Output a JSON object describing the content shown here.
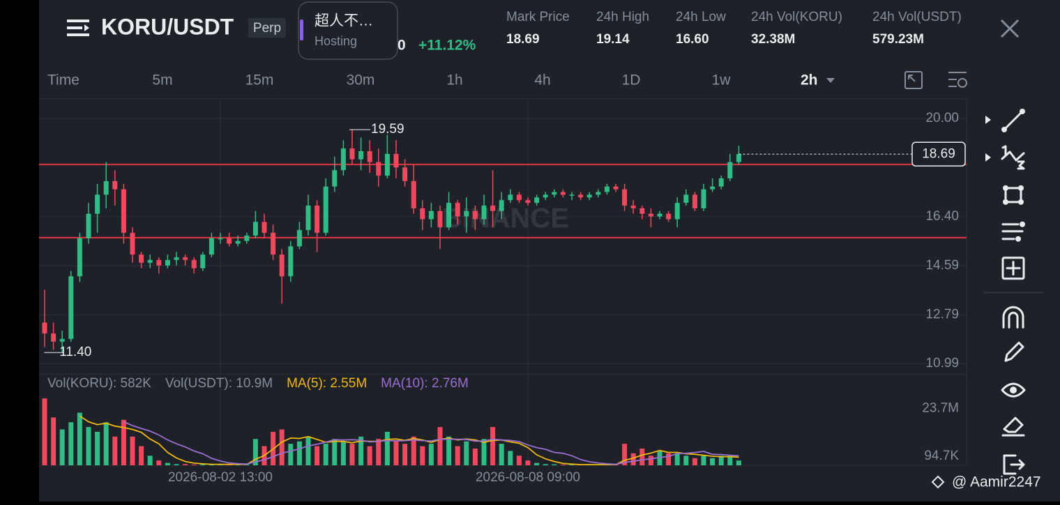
{
  "header": {
    "title": "KORU/USDT",
    "badge": "Perp",
    "hosting": {
      "name": "超人不…",
      "label": "Hosting"
    },
    "price_fragment": "0",
    "change": "+11.12%",
    "stats": [
      {
        "label": "Mark Price",
        "value": "18.69"
      },
      {
        "label": "24h High",
        "value": "19.14"
      },
      {
        "label": "24h Low",
        "value": "16.60"
      },
      {
        "label": "24h Vol(KORU)",
        "value": "32.38M"
      },
      {
        "label": "24h Vol(USDT)",
        "value": "579.23M"
      }
    ]
  },
  "intervals": [
    "Time",
    "5m",
    "15m",
    "30m",
    "1h",
    "4h",
    "1D",
    "1w"
  ],
  "current_interval": "2h",
  "watermark": "BINANCE",
  "credit": "@ Aamir2247",
  "chart_data": {
    "type": "candlestick",
    "ylim": [
      10.66,
      20.72
    ],
    "yticks": [
      {
        "value": 20,
        "label": "20.00"
      },
      {
        "value": 16.4,
        "label": "16.40"
      },
      14.59,
      12.79,
      10.99
    ],
    "xlim": [
      -0.5,
      105
    ],
    "xticks": [
      {
        "value": 20,
        "label": "2026-08-02 13:00"
      },
      {
        "value": 55,
        "label": "2026-08-08 09:00"
      }
    ],
    "up_color": "#2ebd85",
    "down_color": "#f6465d",
    "grid": true,
    "open": [
      12.5,
      12.1,
      11.8,
      11.9,
      14.2,
      15.6,
      16.5,
      17.2,
      17.7,
      17.4,
      15.8,
      15.0,
      14.7,
      14.8,
      14.6,
      14.8,
      14.9,
      14.8,
      14.5,
      15.0,
      15.6,
      15.6,
      15.4,
      15.5,
      15.7,
      16.2,
      15.8,
      15.0,
      14.2,
      15.3,
      15.9,
      16.8,
      15.8,
      17.5,
      18.1,
      18.9,
      18.5,
      18.8,
      18.4,
      17.9,
      18.7,
      18.2,
      17.7,
      16.7,
      16.3,
      16.6,
      16.0,
      16.9,
      16.4,
      16.6,
      16.3,
      16.8,
      16.6,
      17.0,
      17.2,
      17.0,
      16.9,
      17.1,
      17.2,
      17.3,
      17.2,
      17.2,
      17.1,
      17.2,
      17.3,
      17.5,
      17.4,
      16.8,
      16.7,
      16.5,
      16.4,
      16.5,
      16.3,
      16.9,
      17.2,
      16.7,
      17.4,
      17.5,
      17.8,
      18.4
    ],
    "high": [
      13.7,
      12.5,
      12.2,
      14.4,
      15.8,
      16.9,
      17.6,
      18.4,
      18.1,
      17.6,
      16.0,
      15.1,
      15.0,
      14.9,
      15.0,
      15.1,
      15.0,
      14.9,
      15.1,
      15.8,
      15.8,
      15.8,
      15.7,
      15.8,
      16.6,
      16.5,
      16.1,
      15.2,
      15.5,
      16.2,
      17.2,
      17.0,
      17.8,
      18.6,
      19.2,
      19.59,
      19.3,
      19.2,
      18.9,
      19.4,
      19.2,
      18.5,
      18.3,
      17.0,
      16.9,
      16.8,
      17.3,
      17.0,
      17.1,
      16.8,
      17.2,
      18.1,
      17.3,
      17.4,
      17.3,
      17.1,
      17.2,
      17.3,
      17.4,
      17.4,
      17.3,
      17.3,
      17.3,
      17.4,
      17.6,
      17.6,
      17.6,
      17.0,
      16.8,
      16.7,
      16.6,
      16.6,
      17.1,
      17.4,
      17.3,
      17.6,
      17.8,
      17.9,
      18.7,
      19.0
    ],
    "low": [
      11.6,
      11.5,
      11.4,
      11.8,
      14.0,
      15.4,
      15.8,
      16.7,
      16.8,
      15.4,
      14.7,
      14.5,
      14.5,
      14.3,
      14.5,
      14.6,
      14.6,
      14.3,
      14.4,
      14.9,
      15.4,
      15.3,
      15.3,
      15.4,
      15.6,
      15.6,
      14.8,
      13.2,
      14.0,
      15.2,
      15.7,
      15.1,
      15.7,
      17.3,
      17.9,
      18.3,
      18.1,
      18.0,
      17.5,
      17.8,
      17.8,
      17.5,
      16.5,
      15.9,
      16.0,
      15.2,
      15.9,
      16.1,
      15.8,
      15.9,
      16.1,
      16.0,
      16.3,
      16.9,
      16.9,
      16.8,
      16.8,
      17.0,
      17.1,
      17.1,
      17.0,
      17.0,
      17.0,
      17.1,
      17.2,
      17.3,
      16.6,
      16.5,
      16.3,
      16.0,
      16.3,
      16.2,
      16.0,
      16.8,
      16.6,
      16.6,
      17.3,
      17.4,
      17.7,
      18.3
    ],
    "close": [
      12.1,
      11.8,
      11.9,
      14.2,
      15.6,
      16.5,
      17.2,
      17.7,
      17.4,
      15.8,
      15.0,
      14.7,
      14.8,
      14.6,
      14.8,
      14.9,
      14.8,
      14.5,
      15.0,
      15.6,
      15.6,
      15.4,
      15.5,
      15.7,
      16.2,
      15.8,
      15.0,
      14.2,
      15.3,
      15.9,
      16.8,
      15.8,
      17.5,
      18.1,
      18.9,
      18.5,
      18.8,
      18.4,
      17.9,
      18.7,
      18.2,
      17.7,
      16.7,
      16.3,
      16.6,
      16.0,
      16.9,
      16.4,
      16.6,
      16.3,
      16.8,
      16.6,
      17.0,
      17.2,
      17.0,
      16.9,
      17.1,
      17.2,
      17.3,
      17.2,
      17.2,
      17.1,
      17.2,
      17.3,
      17.5,
      17.4,
      16.8,
      16.7,
      16.5,
      16.4,
      16.5,
      16.3,
      16.9,
      17.2,
      16.7,
      17.4,
      17.5,
      17.8,
      18.4,
      18.69
    ],
    "high_label": 19.59,
    "low_label": {
      "value": 11.4,
      "label": "11.40"
    },
    "last_price": 18.69,
    "levels": [
      18.31,
      15.62
    ],
    "level_color": "#e0353f",
    "volume": {
      "legend": [
        "Vol(KORU): 582K",
        "Vol(USDT): 10.9M",
        "MA(5): 2.55M",
        "MA(10): 2.76M"
      ],
      "legend_colors": [
        "#848e9c",
        "#848e9c",
        "#f0b90b",
        "#9b6fd1"
      ],
      "ylim": [
        0,
        30
      ],
      "yticks": [
        {
          "value": 23.7,
          "label": "23.7M"
        },
        {
          "value": 0.0947,
          "label": "94.7K"
        }
      ],
      "values": [
        28,
        20,
        15,
        18,
        22,
        16,
        14,
        18,
        12,
        19,
        12,
        8,
        4,
        2,
        1,
        0.5,
        0.5,
        0.3,
        0.5,
        0.4,
        0.3,
        0.3,
        0.5,
        0.5,
        11,
        8,
        14,
        15,
        9,
        10,
        12,
        8,
        9,
        11,
        10,
        9,
        12,
        8,
        11,
        14,
        10,
        9,
        12,
        8,
        9,
        16,
        12,
        8,
        10,
        7,
        11,
        16,
        9,
        6,
        4,
        2,
        1,
        0.5,
        0.4,
        0.3,
        0.3,
        0.3,
        0.3,
        0.3,
        0.3,
        0.4,
        9,
        5,
        7,
        4,
        6,
        5,
        5,
        4,
        3,
        4,
        3,
        4,
        4,
        2
      ],
      "ma5": [
        null,
        null,
        null,
        null,
        20.6,
        18.2,
        17,
        17.6,
        16.4,
        15.8,
        15,
        13.8,
        11,
        9,
        5.4,
        3.1,
        1.6,
        0.9,
        0.6,
        0.4,
        0.4,
        0.4,
        0.4,
        0.4,
        2.5,
        4.1,
        6.8,
        9.7,
        11.4,
        11.2,
        12,
        10.8,
        9.6,
        10,
        10,
        9.4,
        10.2,
        10,
        10,
        10.8,
        11,
        10.4,
        11.2,
        10.6,
        9.6,
        10.8,
        11.4,
        10.6,
        11,
        10.6,
        9.6,
        10.4,
        10.6,
        9.8,
        9.2,
        7.4,
        4.4,
        2.7,
        1.6,
        0.8,
        0.5,
        0.3,
        0.3,
        0.3,
        0.3,
        0.3,
        2.1,
        3,
        4.3,
        5.1,
        6.2,
        5.4,
        5.4,
        4.8,
        4.6,
        4.2,
        3.8,
        3.6,
        3.6,
        3.4
      ],
      "ma10": [
        null,
        null,
        null,
        null,
        null,
        null,
        null,
        null,
        null,
        18.2,
        16.6,
        15.4,
        14.3,
        12.7,
        10.6,
        9,
        7.7,
        6,
        4.8,
        2.9,
        1.8,
        1,
        0.7,
        0.5,
        1.5,
        2.3,
        3.6,
        5.1,
        5.9,
        6.9,
        8.1,
        8.8,
        9.7,
        10.7,
        10.6,
        10.7,
        10.5,
        9.8,
        10,
        10.4,
        10.2,
        10.3,
        10.6,
        10.3,
        10.2,
        10.9,
        10.9,
        10.9,
        10.8,
        10.1,
        10.2,
        10.9,
        10.6,
        10.4,
        9.9,
        8.5,
        7.4,
        6.7,
        5.4,
        5,
        4,
        2.4,
        1.5,
        1,
        0.6,
        0.4,
        1.2,
        1.7,
        2.3,
        2.7,
        3.3,
        3.7,
        4.9,
        5,
        5.4,
        5.8,
        4.6,
        4.5,
        4.2,
        4
      ]
    }
  }
}
